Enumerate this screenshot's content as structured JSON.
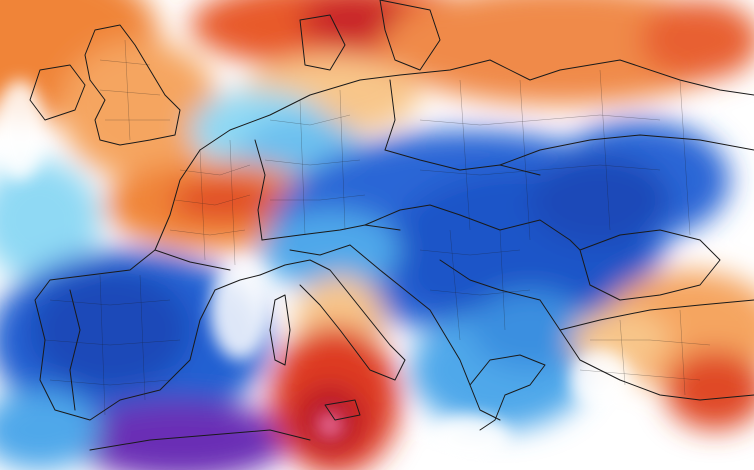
{
  "map": {
    "palette": {
      "deep_purple": "#6a2fb5",
      "blue": "#1f5bd1",
      "light_blue": "#4fa8ea",
      "cyan": "#8fd9f4",
      "white": "#ffffff",
      "pale_orange": "#f8c68a",
      "orange": "#f08438",
      "red": "#de3a24",
      "deep_red": "#b8182a",
      "pink": "#e8709a",
      "border_color": "#1a1a1a"
    }
  }
}
